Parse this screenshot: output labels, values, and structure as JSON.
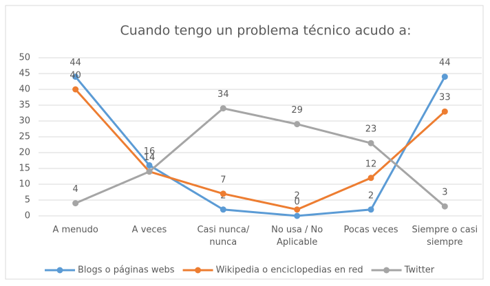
{
  "chart_data": {
    "type": "line",
    "title": "Cuando tengo un problema técnico acudo a:",
    "categories": [
      "A menudo",
      "A veces",
      "Casi nunca/ nunca",
      "No usa / No Aplicable",
      "Pocas veces",
      "Siempre o casi siempre"
    ],
    "series": [
      {
        "name": "Blogs o páginas webs",
        "color": "#5b9bd5",
        "values": [
          44,
          16,
          2,
          0,
          2,
          44
        ]
      },
      {
        "name": "Wikipedia o enciclopedias en red",
        "color": "#ed7d31",
        "values": [
          40,
          14,
          7,
          2,
          12,
          33
        ]
      },
      {
        "name": "Twitter",
        "color": "#a5a5a5",
        "values": [
          4,
          14,
          34,
          29,
          23,
          3
        ]
      }
    ],
    "ylim": [
      0,
      50
    ],
    "yticks": [
      0,
      5,
      10,
      15,
      20,
      25,
      30,
      35,
      40,
      45,
      50
    ],
    "grid": true,
    "legend": "bottom"
  }
}
